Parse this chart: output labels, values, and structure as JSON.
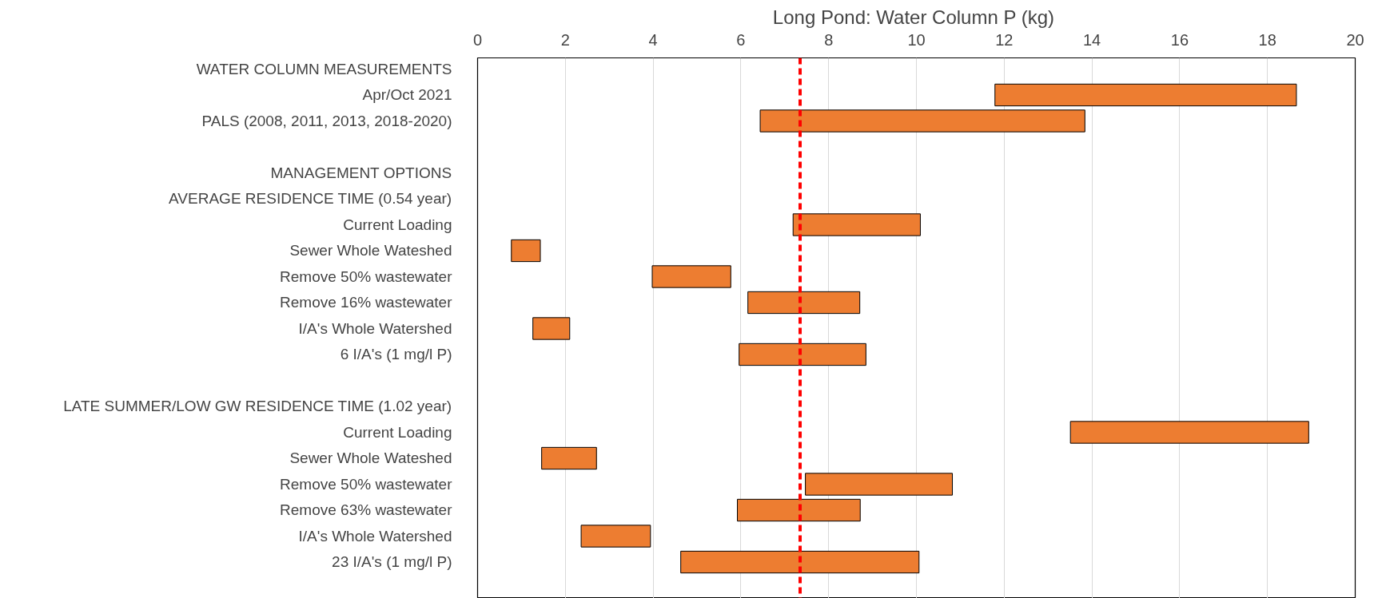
{
  "chart_data": {
    "type": "bar",
    "orientation": "horizontal",
    "title": "Long Pond:  Water Column P (kg)",
    "categories": [
      "WATER COLUMN MEASUREMENTS",
      "Apr/Oct 2021",
      "PALS (2008, 2011, 2013, 2018-2020)",
      null,
      "MANAGEMENT OPTIONS",
      "AVERAGE RESIDENCE TIME (0.54 year)",
      "Current Loading",
      "Sewer Whole Wateshed",
      "Remove 50% wastewater",
      "Remove 16% wastewater",
      "I/A's Whole Watershed",
      "6 I/A's (1 mg/l P)",
      null,
      "LATE SUMMER/LOW GW RESIDENCE TIME (1.02 year)",
      "Current Loading",
      "Sewer Whole Wateshed",
      "Remove 50% wastewater",
      "Remove 63% wastewater",
      "I/A's Whole Watershed",
      "23 I/A's (1 mg/l P)"
    ],
    "base": [
      null,
      11.79,
      6.44,
      null,
      null,
      null,
      7.19,
      0.77,
      3.98,
      6.16,
      1.26,
      5.96,
      null,
      null,
      13.51,
      1.46,
      7.47,
      5.92,
      2.36,
      4.63
    ],
    "values": [
      null,
      6.87,
      7.4,
      null,
      null,
      null,
      2.9,
      0.66,
      1.79,
      2.55,
      0.84,
      2.89,
      null,
      null,
      5.43,
      1.25,
      3.35,
      2.8,
      1.58,
      5.43
    ],
    "color": "#ed7d31",
    "xlim": [
      0,
      20
    ],
    "xticks": [
      0,
      2,
      4,
      6,
      8,
      10,
      12,
      14,
      16,
      18,
      20
    ],
    "grid": "x",
    "ref_lines": [
      {
        "axis": "x",
        "value": 7.35,
        "color": "#ff0000",
        "line_style": "dashed"
      }
    ]
  }
}
